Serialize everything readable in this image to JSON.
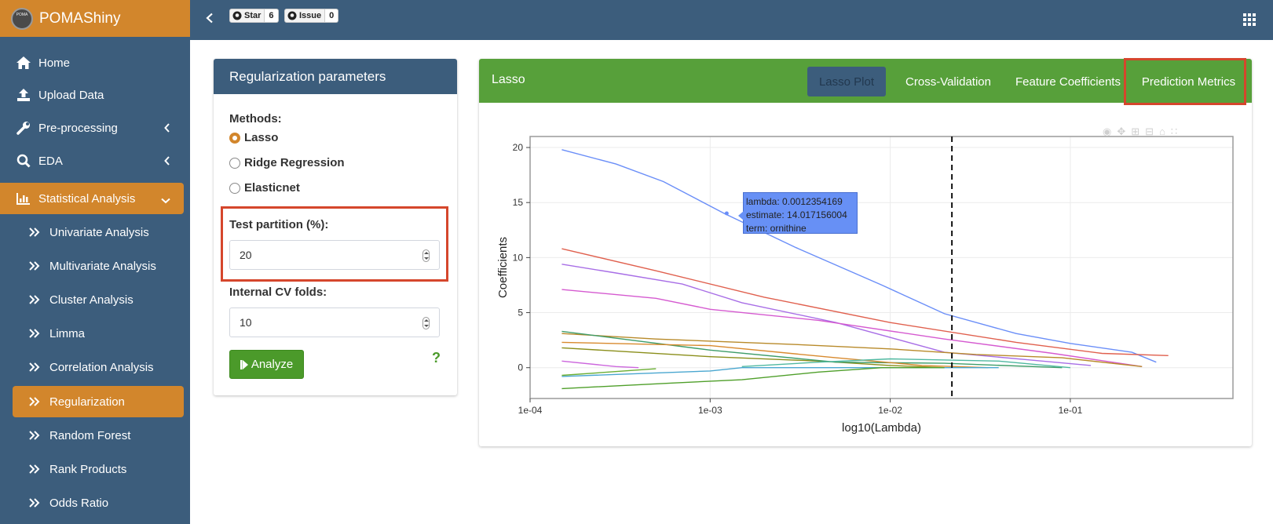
{
  "app": {
    "title": "POMAShiny",
    "logo_text": "POMA"
  },
  "github": {
    "star_label": "Star",
    "star_count": "6",
    "issue_label": "Issue",
    "issue_count": "0"
  },
  "sidebar": {
    "items": [
      {
        "label": "Home",
        "icon": "home-icon"
      },
      {
        "label": "Upload Data",
        "icon": "upload-icon"
      },
      {
        "label": "Pre-processing",
        "icon": "wrench-icon"
      },
      {
        "label": "EDA",
        "icon": "search-icon"
      },
      {
        "label": "Statistical Analysis",
        "icon": "bar-chart-icon"
      }
    ],
    "subitems": [
      {
        "label": "Univariate Analysis"
      },
      {
        "label": "Multivariate Analysis"
      },
      {
        "label": "Cluster Analysis"
      },
      {
        "label": "Limma"
      },
      {
        "label": "Correlation Analysis"
      },
      {
        "label": "Regularization"
      },
      {
        "label": "Random Forest"
      },
      {
        "label": "Rank Products"
      },
      {
        "label": "Odds Ratio"
      }
    ],
    "active_item": "Statistical Analysis",
    "active_subitem": "Regularization"
  },
  "params": {
    "title": "Regularization parameters",
    "methods_label": "Methods:",
    "methods": [
      "Lasso",
      "Ridge Regression",
      "Elasticnet"
    ],
    "selected_method": "Lasso",
    "test_partition_label": "Test partition (%):",
    "test_partition_value": "20",
    "cv_folds_label": "Internal CV folds:",
    "cv_folds_value": "10",
    "analyze_label": "Analyze",
    "help_label": "?"
  },
  "results": {
    "title": "Lasso",
    "tabs": [
      {
        "label": "Lasso Plot",
        "active": true
      },
      {
        "label": "Cross-Validation",
        "active": false
      },
      {
        "label": "Feature Coefficients",
        "active": false
      },
      {
        "label": "Prediction Metrics",
        "active": false
      }
    ]
  },
  "tooltip": {
    "lines": [
      "lambda: 0.0012354169",
      "estimate: 14.017156004",
      "term: ornithine"
    ]
  },
  "colors": {
    "header": "#3c5d7c",
    "accent": "#d2862c",
    "green": "#57a03a",
    "highlight": "#d5462c"
  },
  "chart_data": {
    "type": "line",
    "title": "",
    "xlabel": "log10(Lambda)",
    "ylabel": "Coefficients",
    "x_scale": "log10",
    "xlim": [
      0.0001,
      0.8
    ],
    "ylim": [
      -2.8,
      21
    ],
    "x_ticks": [
      0.0001,
      0.001,
      0.01,
      0.1
    ],
    "x_tick_labels": [
      "1e-04",
      "1e-03",
      "1e-02",
      "1e-01"
    ],
    "y_ticks": [
      0,
      5,
      10,
      15,
      20
    ],
    "y_tick_labels": [
      "0",
      "5",
      "10",
      "15",
      "20"
    ],
    "vline": 0.022,
    "grid": true,
    "highlight_point": {
      "x": 0.0012354169,
      "y": 14.017156004
    },
    "series": [
      {
        "color": "#6a8ef8",
        "points": [
          [
            0.00015,
            19.8
          ],
          [
            0.0003,
            18.5
          ],
          [
            0.00055,
            16.9
          ],
          [
            0.0012,
            14.0
          ],
          [
            0.003,
            10.9
          ],
          [
            0.009,
            7.5
          ],
          [
            0.02,
            4.9
          ],
          [
            0.05,
            3.1
          ],
          [
            0.1,
            2.2
          ],
          [
            0.22,
            1.4
          ],
          [
            0.3,
            0.5
          ]
        ]
      },
      {
        "color": "#e0604e",
        "points": [
          [
            0.00015,
            10.8
          ],
          [
            0.0005,
            8.8
          ],
          [
            0.002,
            6.4
          ],
          [
            0.01,
            4.1
          ],
          [
            0.05,
            2.3
          ],
          [
            0.15,
            1.3
          ],
          [
            0.35,
            1.1
          ]
        ]
      },
      {
        "color": "#a86ee6",
        "points": [
          [
            0.00015,
            9.4
          ],
          [
            0.0003,
            8.6
          ],
          [
            0.0007,
            7.6
          ],
          [
            0.0015,
            5.9
          ],
          [
            0.005,
            4.1
          ],
          [
            0.02,
            1.4
          ],
          [
            0.06,
            0.7
          ],
          [
            0.13,
            0.2
          ]
        ]
      },
      {
        "color": "#d55ad0",
        "points": [
          [
            0.00015,
            7.1
          ],
          [
            0.0005,
            6.3
          ],
          [
            0.001,
            5.3
          ],
          [
            0.004,
            4.3
          ],
          [
            0.02,
            2.6
          ],
          [
            0.08,
            1.3
          ],
          [
            0.25,
            0.1
          ]
        ]
      },
      {
        "color": "#b88a2a",
        "points": [
          [
            0.00015,
            3.1
          ],
          [
            0.0005,
            2.6
          ],
          [
            0.003,
            2.1
          ],
          [
            0.01,
            1.7
          ],
          [
            0.03,
            1.2
          ],
          [
            0.09,
            0.9
          ],
          [
            0.25,
            0.1
          ]
        ]
      },
      {
        "color": "#8a8e1a",
        "points": [
          [
            0.00015,
            1.8
          ],
          [
            0.001,
            1.0
          ],
          [
            0.004,
            0.6
          ],
          [
            0.01,
            0.2
          ],
          [
            0.02,
            0.0
          ]
        ]
      },
      {
        "color": "#3f9d6a",
        "points": [
          [
            0.00015,
            3.3
          ],
          [
            0.001,
            1.6
          ],
          [
            0.005,
            0.5
          ],
          [
            0.02,
            0.4
          ],
          [
            0.09,
            0.0
          ]
        ]
      },
      {
        "color": "#d88a2e",
        "points": [
          [
            0.00015,
            2.3
          ],
          [
            0.001,
            2.0
          ],
          [
            0.005,
            0.9
          ],
          [
            0.015,
            0.2
          ],
          [
            0.035,
            0.0
          ]
        ]
      },
      {
        "color": "#4aa7d0",
        "points": [
          [
            0.00015,
            -0.8
          ],
          [
            0.001,
            -0.3
          ],
          [
            0.0015,
            0.0
          ],
          [
            0.01,
            0.0
          ],
          [
            0.04,
            0.0
          ]
        ]
      },
      {
        "color": "#4fb8a0",
        "points": [
          [
            0.0015,
            0.1
          ],
          [
            0.004,
            0.5
          ],
          [
            0.01,
            0.8
          ],
          [
            0.04,
            0.6
          ],
          [
            0.1,
            0.0
          ]
        ]
      },
      {
        "color": "#4f9f2a",
        "points": [
          [
            0.00015,
            -1.9
          ],
          [
            0.0006,
            -1.4
          ],
          [
            0.0015,
            -1.1
          ],
          [
            0.004,
            -0.4
          ],
          [
            0.009,
            0.0
          ],
          [
            0.02,
            0.0
          ]
        ]
      },
      {
        "color": "#6aae34",
        "points": [
          [
            0.00015,
            -0.7
          ],
          [
            0.0005,
            -0.1
          ]
        ]
      },
      {
        "color": "#cc66dd",
        "points": [
          [
            0.00015,
            0.6
          ],
          [
            0.0003,
            0.1
          ],
          [
            0.0004,
            0.0
          ]
        ]
      }
    ]
  }
}
